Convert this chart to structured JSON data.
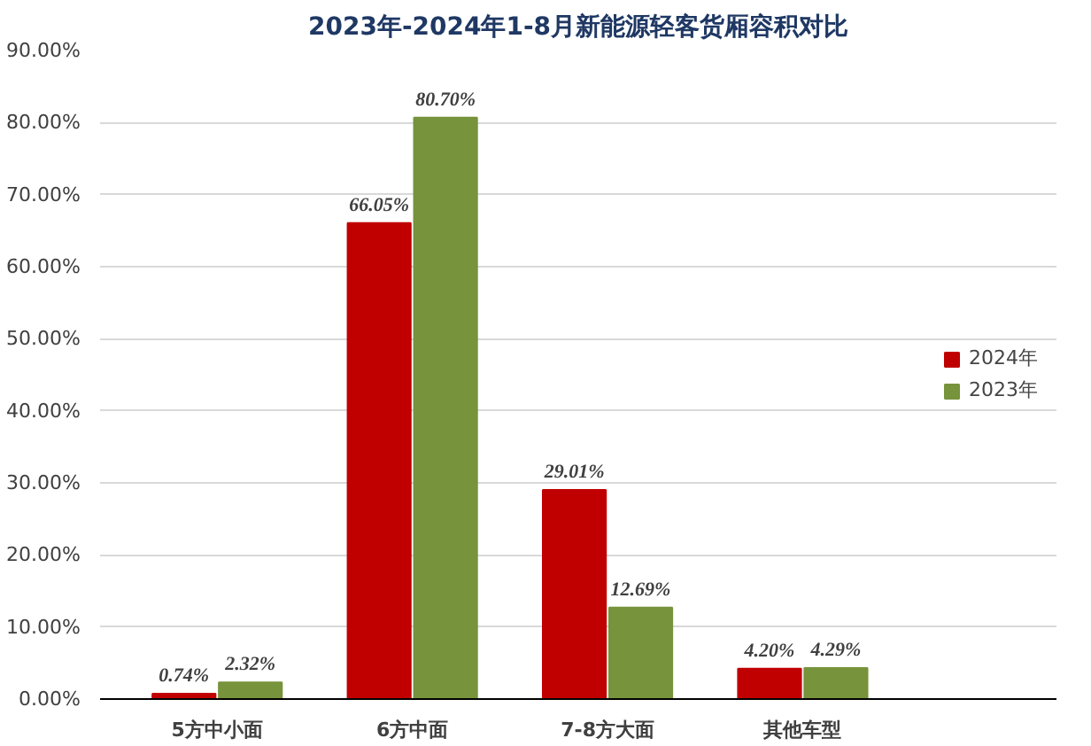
{
  "chart_data": {
    "type": "bar",
    "title": "2023年-2024年1-8月新能源轻客货厢容积对比",
    "categories": [
      "5方中小面",
      "6方中面",
      "7-8方大面",
      "其他车型"
    ],
    "series": [
      {
        "name": "2024年",
        "color": "#c00000",
        "values": [
          0.74,
          66.05,
          29.01,
          4.2
        ],
        "value_labels": [
          "0.74%",
          "66.05%",
          "29.01%",
          "4.20%"
        ]
      },
      {
        "name": "2023年",
        "color": "#77933c",
        "values": [
          2.32,
          80.7,
          12.69,
          4.29
        ],
        "value_labels": [
          "2.32%",
          "80.70%",
          "12.69%",
          "4.29%"
        ]
      }
    ],
    "ylim": [
      0,
      90
    ],
    "yticks": [
      {
        "value": 0,
        "label": "0.00%"
      },
      {
        "value": 10,
        "label": "10.00%"
      },
      {
        "value": 20,
        "label": "20.00%"
      },
      {
        "value": 30,
        "label": "30.00%"
      },
      {
        "value": 40,
        "label": "40.00%"
      },
      {
        "value": 50,
        "label": "50.00%"
      },
      {
        "value": 60,
        "label": "60.00%"
      },
      {
        "value": 70,
        "label": "70.00%"
      },
      {
        "value": 80,
        "label": "80.00%"
      },
      {
        "value": 90,
        "label": "90.00%"
      }
    ],
    "grid": "y",
    "legend": "right"
  }
}
